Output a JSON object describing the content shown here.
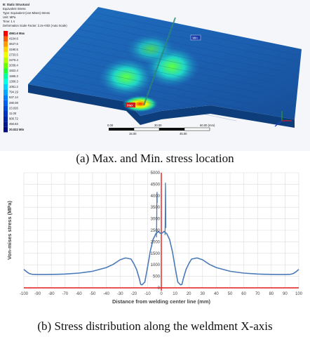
{
  "fea": {
    "header": [
      "B: Static Structural",
      "Equivalent Stress",
      "Type: Equivalent (von-Mises) Stress",
      "Unit: MPa",
      "Time: 1 s",
      "Deformation Scale Factor: 2.2e+002 (Auto Scale)"
    ],
    "legend_title": "4561.6 Max",
    "legend_values": [
      "4561.6 Max",
      "4104.6",
      "3647.6",
      "3190.5",
      "2733.5",
      "2276.4",
      "2039.4",
      "1822.4",
      "1565.3",
      "1308.3",
      "1051.2",
      "794.19",
      "537.14",
      "280.08",
      "23.026",
      "11.00",
      "900.72",
      "450.83",
      "20.022 Min"
    ],
    "legend_colors": [
      "#ff0000",
      "#ff5a00",
      "#ff9c00",
      "#ffd200",
      "#f0ff00",
      "#b4ff00",
      "#6cff00",
      "#20ff38",
      "#00ffa0",
      "#00ffe0",
      "#00d4ff",
      "#00a8ff",
      "#0080ff",
      "#0060f0",
      "#0048d8",
      "#0034c0",
      "#0024a8",
      "#001890",
      "#000c80"
    ],
    "max_label": "Max",
    "min_label": "Min",
    "scale_labels": [
      "0.00",
      "30.00",
      "60.00 (mm)",
      "15.00",
      "45.00"
    ]
  },
  "captions": {
    "a": "(a) Max. and Min. stress location",
    "b": "(b) Stress distribution along the weldment X-axis"
  },
  "chart_data": {
    "type": "line",
    "title": "",
    "xlabel": "Distance from welding center line (mm)",
    "ylabel": "Von-mises stress (MPa)",
    "xlim": [
      -100,
      100
    ],
    "ylim": [
      0,
      5000
    ],
    "x_ticks": [
      -100,
      -90,
      -80,
      -70,
      -60,
      -50,
      -40,
      -30,
      -20,
      -10,
      0,
      10,
      20,
      30,
      40,
      50,
      60,
      70,
      80,
      90,
      100
    ],
    "y_ticks": [
      0,
      500,
      1000,
      1500,
      2000,
      2500,
      3000,
      3500,
      4000,
      4500,
      5000
    ],
    "grid": true,
    "line_color": "#4a7ab8",
    "axis_marker_color": "#e31a1c",
    "series": [
      {
        "name": "",
        "x": [
          -100,
          -98,
          -96,
          -94,
          -90,
          -85,
          -80,
          -75,
          -70,
          -60,
          -50,
          -40,
          -35,
          -30,
          -26,
          -22,
          -20,
          -18,
          -16,
          -15,
          -14,
          -12,
          -10,
          -8,
          -6,
          -4,
          -2,
          -1,
          0,
          1,
          2,
          4,
          6,
          8,
          10,
          12,
          14,
          15,
          16,
          18,
          20,
          22,
          26,
          30,
          35,
          40,
          50,
          60,
          70,
          75,
          80,
          85,
          90,
          94,
          96,
          98,
          100
        ],
        "y": [
          800,
          700,
          620,
          590,
          580,
          580,
          585,
          590,
          600,
          640,
          720,
          880,
          1020,
          1220,
          1300,
          1250,
          1050,
          800,
          400,
          150,
          130,
          250,
          900,
          1600,
          2100,
          2350,
          2450,
          2380,
          2350,
          2400,
          2450,
          2350,
          2100,
          1600,
          900,
          250,
          130,
          150,
          400,
          800,
          1050,
          1250,
          1300,
          1220,
          1020,
          880,
          720,
          640,
          600,
          590,
          585,
          580,
          580,
          590,
          620,
          700,
          800
        ]
      },
      {
        "name": "",
        "x": [
          -3.5,
          -3.3,
          -3.2,
          -3.1,
          -3.0
        ],
        "y": [
          2200,
          3200,
          4000,
          4150,
          3700
        ]
      },
      {
        "name": "",
        "x": [
          2.7,
          2.9,
          3.0,
          3.1,
          3.3
        ],
        "y": [
          2300,
          3400,
          4550,
          4200,
          2600
        ]
      }
    ]
  }
}
